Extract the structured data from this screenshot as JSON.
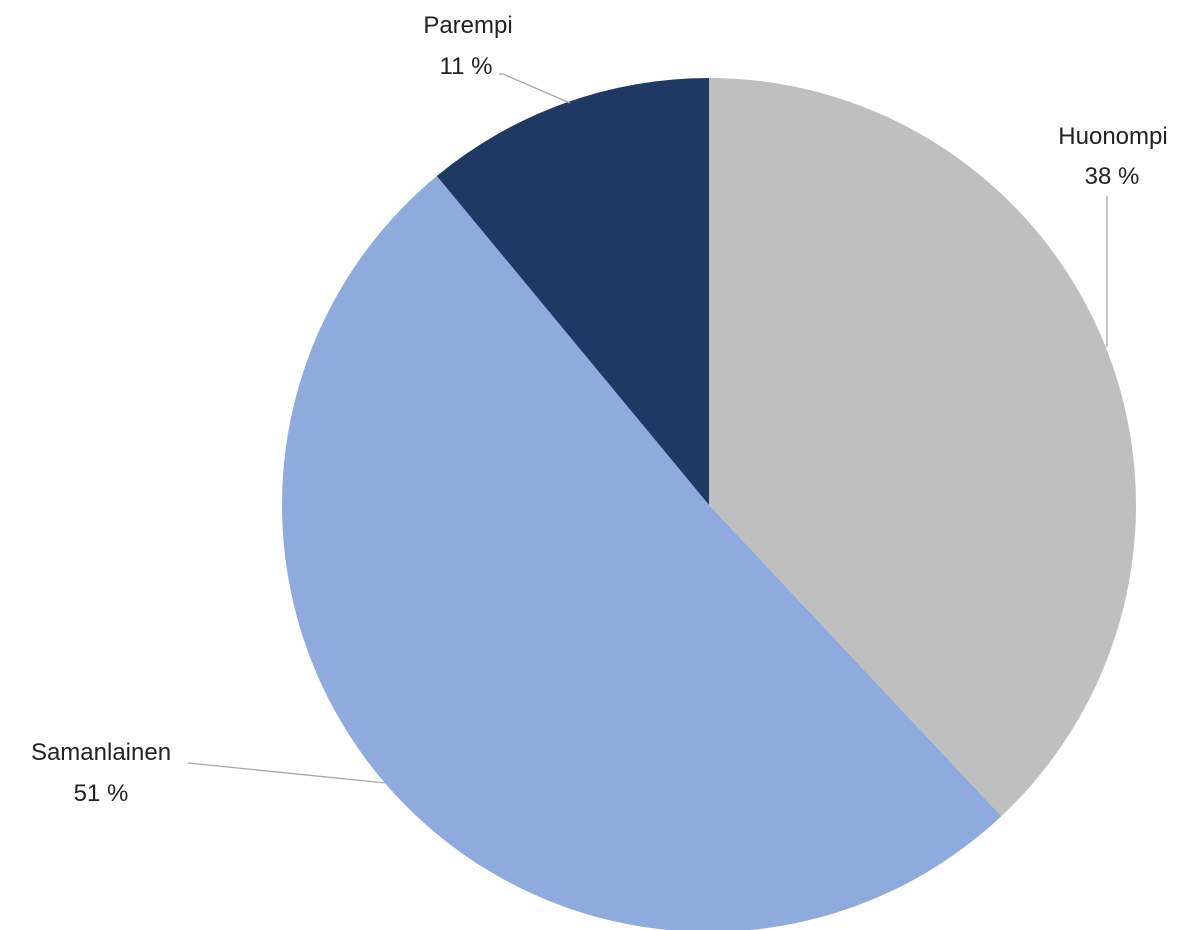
{
  "chart_data": {
    "type": "pie",
    "start_angle_deg": 0,
    "direction": "clockwise",
    "slices": [
      {
        "label": "Huonompi",
        "value": 38,
        "value_label": "38 %",
        "color": "#bfbfbf"
      },
      {
        "label": "Samanlainen",
        "value": 51,
        "value_label": "51 %",
        "color": "#8faadc"
      },
      {
        "label": "Parempi",
        "value": 11,
        "value_label": "11 %",
        "color": "#203864"
      }
    ],
    "legend": "none"
  }
}
